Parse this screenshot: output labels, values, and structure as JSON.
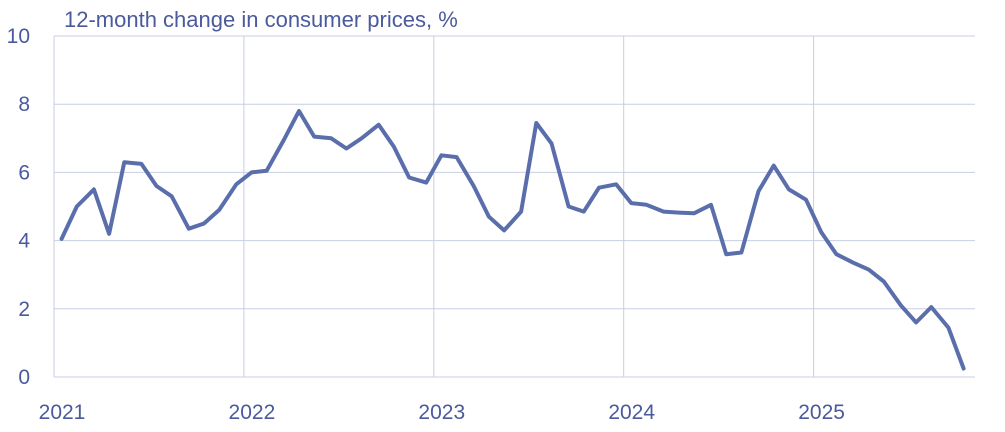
{
  "chart_data": {
    "type": "line",
    "title": "12-month change in consumer prices, %",
    "xlabel": "",
    "ylabel": "",
    "ylim": [
      0,
      10
    ],
    "yticks": [
      "0",
      "2",
      "4",
      "6",
      "8",
      "10"
    ],
    "xlim": [
      2021,
      2025.85
    ],
    "xticks": [
      {
        "value": 2021,
        "label": "2021"
      },
      {
        "value": 2022,
        "label": "2022"
      },
      {
        "value": 2023,
        "label": "2023"
      },
      {
        "value": 2024,
        "label": "2024"
      },
      {
        "value": 2025,
        "label": "2025"
      }
    ],
    "grid": true,
    "series": [
      {
        "color": "#5a6eac",
        "x": [
          2021.04,
          2021.12,
          2021.21,
          2021.29,
          2021.37,
          2021.46,
          2021.54,
          2021.62,
          2021.71,
          2021.79,
          2021.87,
          2021.96,
          2022.04,
          2022.12,
          2022.21,
          2022.29,
          2022.37,
          2022.46,
          2022.54,
          2022.62,
          2022.71,
          2022.79,
          2022.87,
          2022.96,
          2023.04,
          2023.12,
          2023.21,
          2023.29,
          2023.37,
          2023.46,
          2023.54,
          2023.62,
          2023.71,
          2023.79,
          2023.87,
          2023.96,
          2024.04,
          2024.12,
          2024.21,
          2024.29,
          2024.37,
          2024.46,
          2024.54,
          2024.62,
          2024.71,
          2024.79,
          2024.87,
          2024.96,
          2025.04,
          2025.12,
          2025.21,
          2025.29,
          2025.37,
          2025.46,
          2025.54,
          2025.62,
          2025.71,
          2025.79
        ],
        "values": [
          4.05,
          5.0,
          5.5,
          4.2,
          6.3,
          6.25,
          5.6,
          5.3,
          4.35,
          4.5,
          4.9,
          5.65,
          6.0,
          6.05,
          6.95,
          7.8,
          7.05,
          7.0,
          6.7,
          7.0,
          7.4,
          6.75,
          5.85,
          5.7,
          6.5,
          6.45,
          5.6,
          4.7,
          4.3,
          4.85,
          7.45,
          6.85,
          5.0,
          4.85,
          5.55,
          5.65,
          5.1,
          5.05,
          4.85,
          4.82,
          4.8,
          5.05,
          3.6,
          3.65,
          5.45,
          6.2,
          5.5,
          5.2,
          4.25,
          3.6,
          3.35,
          3.15,
          2.8,
          2.1,
          1.6,
          2.05,
          1.45,
          0.25
        ]
      }
    ]
  }
}
